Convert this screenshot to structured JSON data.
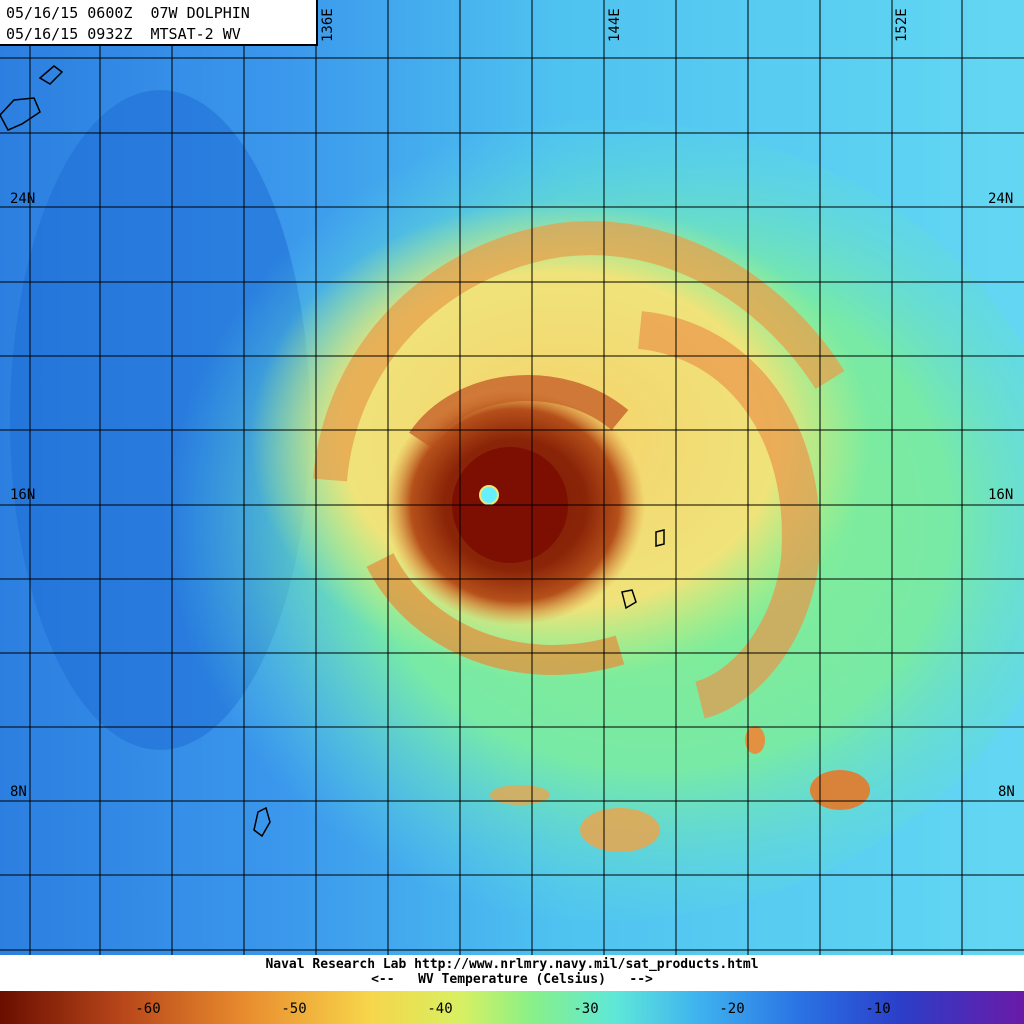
{
  "header": {
    "line1": "05/16/15 0600Z  07W DOLPHIN",
    "line2": "05/16/15 0932Z  MTSAT-2 WV"
  },
  "map": {
    "longitude_labels": [
      "136E",
      "144E",
      "152E"
    ],
    "latitude_labels": [
      "24N",
      "16N",
      "8N"
    ],
    "storm_name": "DOLPHIN",
    "colors": {
      "background_blue": "#2f8fe8",
      "moist_cyan": "#58e0f0",
      "green": "#8ff08a",
      "yellow": "#f3e675",
      "orange": "#e78f3f",
      "brown": "#8b2f0a",
      "eye_cyan": "#66f0ff"
    }
  },
  "footer": {
    "credit": "Naval Research Lab http://www.nrlmry.navy.mil/sat_products.html",
    "legend_title": "<--   WV Temperature (Celsius)   -->"
  },
  "colorbar": {
    "ticks": [
      "-60",
      "-50",
      "-40",
      "-30",
      "-20",
      "-10"
    ]
  }
}
